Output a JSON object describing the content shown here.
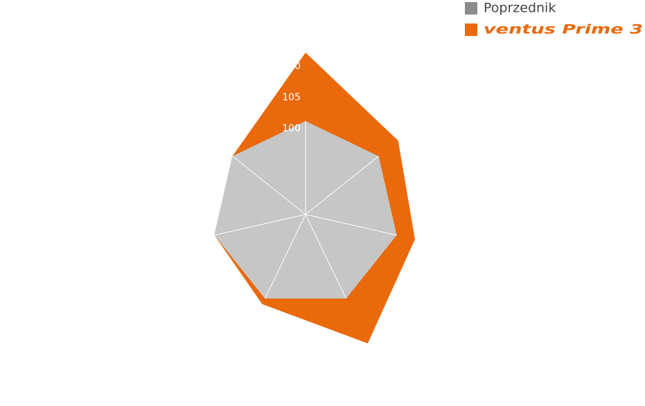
{
  "chart_data": {
    "type": "radar",
    "categories": [
      null,
      null,
      null,
      null,
      null,
      null,
      null
    ],
    "series": [
      {
        "name": "ventus Prime 3",
        "color": "#ea690b",
        "values": [
          111,
          104,
          103,
          108,
          101,
          100,
          100
        ]
      },
      {
        "name": "Poprzednik",
        "color": "#c6c6c6",
        "values": [
          100,
          100,
          100,
          100,
          100,
          100,
          100
        ]
      }
    ],
    "ylim": [
      85,
      110
    ],
    "yticks": [
      100,
      105,
      110
    ],
    "legend": "top-right"
  }
}
